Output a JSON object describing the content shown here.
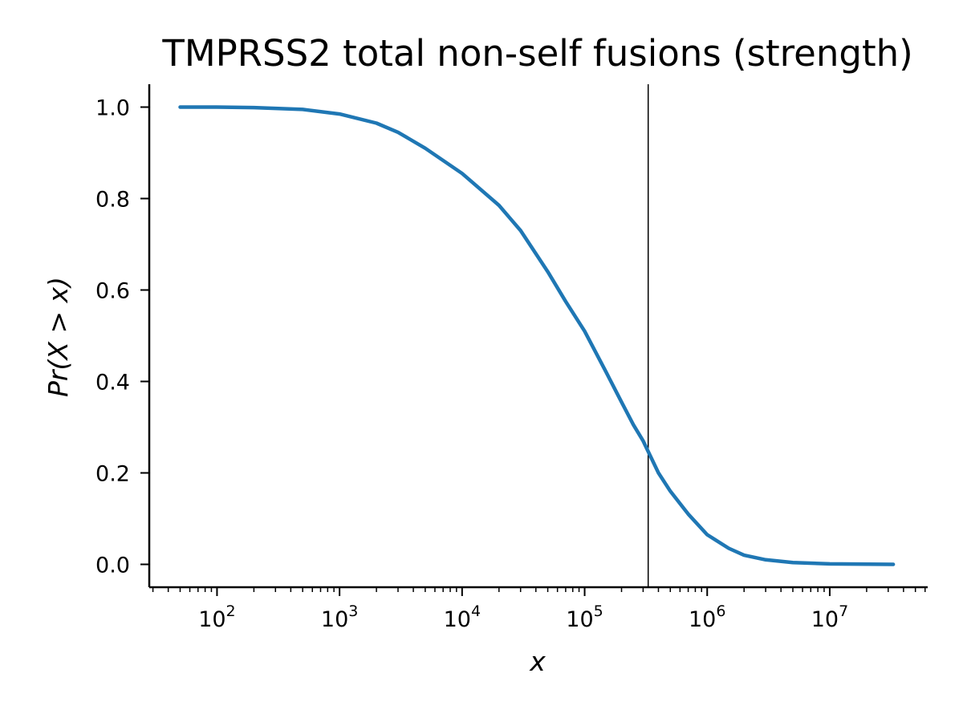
{
  "chart_data": {
    "type": "line",
    "title": "TMPRSS2 total non-self fusions (strength)",
    "xlabel": "x",
    "ylabel": "Pr(X > x)",
    "xscale": "log",
    "xlim": [
      28,
      63000000
    ],
    "ylim": [
      -0.05,
      1.05
    ],
    "x_tick_labels": [
      {
        "base": "10",
        "exp": "2",
        "value": 100
      },
      {
        "base": "10",
        "exp": "3",
        "value": 1000
      },
      {
        "base": "10",
        "exp": "4",
        "value": 10000
      },
      {
        "base": "10",
        "exp": "5",
        "value": 100000
      },
      {
        "base": "10",
        "exp": "6",
        "value": 1000000
      },
      {
        "base": "10",
        "exp": "7",
        "value": 10000000
      }
    ],
    "y_tick_labels": [
      "0.0",
      "0.2",
      "0.4",
      "0.6",
      "0.8",
      "1.0"
    ],
    "y_tick_values": [
      0.0,
      0.2,
      0.4,
      0.6,
      0.8,
      1.0
    ],
    "vline_x": 330000,
    "grid": false,
    "legend": "none",
    "series": [
      {
        "color": "#1f77b4",
        "x": [
          50,
          100,
          200,
          500,
          1000,
          2000,
          3000,
          5000,
          10000,
          20000,
          30000,
          50000,
          70000,
          100000,
          150000,
          200000,
          250000,
          300000,
          400000,
          500000,
          700000,
          1000000,
          1500000,
          2000000,
          3000000,
          5000000,
          10000000,
          33000000
        ],
        "y": [
          1.0,
          1.0,
          0.999,
          0.995,
          0.985,
          0.965,
          0.945,
          0.91,
          0.855,
          0.785,
          0.73,
          0.64,
          0.575,
          0.51,
          0.42,
          0.355,
          0.305,
          0.27,
          0.2,
          0.16,
          0.11,
          0.065,
          0.035,
          0.02,
          0.01,
          0.004,
          0.001,
          0.0
        ]
      }
    ]
  }
}
